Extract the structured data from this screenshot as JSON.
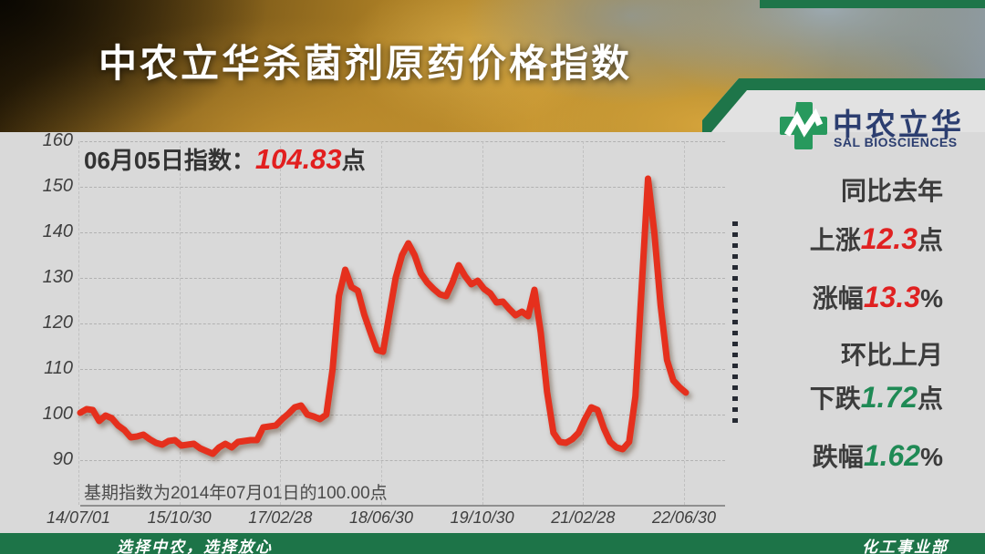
{
  "header": {
    "title": "中农立华杀菌剂原药价格指数"
  },
  "logo": {
    "name_cn": "中农立华",
    "name_en": "SAL BIOSCIENCES"
  },
  "annotation": {
    "prefix": "06月05日指数：",
    "value": "104.83",
    "suffix": "点"
  },
  "base_note": "基期指数为2014年07月01日的100.00点",
  "stats": {
    "yoy_label": "同比去年",
    "yoy_points_prefix": "上涨",
    "yoy_points_value": "12.3",
    "yoy_points_suffix": "点",
    "yoy_pct_prefix": "涨幅",
    "yoy_pct_value": "13.3",
    "yoy_pct_suffix": "%",
    "mom_label": "环比上月",
    "mom_points_prefix": "下跌",
    "mom_points_value": "1.72",
    "mom_points_suffix": "点",
    "mom_pct_prefix": "跌幅",
    "mom_pct_value": "1.62",
    "mom_pct_suffix": "%",
    "up_color": "#e02121",
    "down_color": "#1f8a55"
  },
  "footer": {
    "left": "选择中农，选择放心",
    "right": "化工事业部"
  },
  "chart_data": {
    "type": "line",
    "title": "中农立华杀菌剂原药价格指数",
    "annotation": "06月05日指数：104.83点",
    "base_note": "基期指数为2014年07月01日的100.00点",
    "ylim": [
      90,
      160
    ],
    "yticks": [
      160,
      150,
      140,
      130,
      120,
      110,
      100,
      90
    ],
    "xtick_labels": [
      "14/07/01",
      "15/10/30",
      "17/02/28",
      "18/06/30",
      "19/10/30",
      "21/02/28",
      "22/06/30"
    ],
    "x_unit": "monthly index values, 2014/07 - 2022/06",
    "grid": true,
    "line_color": "#e5301d",
    "values": [
      100.4,
      101.2,
      101.0,
      98.6,
      99.8,
      99.2,
      97.6,
      96.6,
      95.0,
      95.2,
      95.6,
      94.6,
      93.8,
      93.4,
      94.2,
      94.4,
      93.2,
      93.4,
      93.6,
      92.6,
      92.0,
      91.4,
      92.8,
      93.6,
      92.8,
      94.0,
      94.2,
      94.4,
      94.4,
      97.2,
      97.4,
      97.6,
      99.0,
      100.2,
      101.6,
      102.0,
      100.0,
      99.6,
      99.0,
      100.0,
      110.0,
      126.0,
      131.8,
      128.0,
      127.2,
      122.0,
      118.0,
      114.2,
      113.8,
      122.0,
      130.0,
      135.0,
      137.6,
      135.0,
      131.0,
      129.0,
      127.6,
      126.4,
      126.0,
      129.0,
      132.8,
      130.4,
      128.6,
      129.4,
      127.6,
      126.6,
      124.6,
      124.8,
      123.2,
      121.8,
      122.6,
      121.6,
      127.4,
      118.0,
      105.0,
      96.0,
      94.0,
      93.8,
      94.6,
      96.0,
      99.0,
      101.6,
      101.0,
      97.0,
      94.0,
      92.8,
      92.4,
      94.0,
      104.0,
      128.0,
      151.8,
      140.0,
      124.0,
      112.0,
      107.5,
      106.0,
      104.83
    ]
  }
}
